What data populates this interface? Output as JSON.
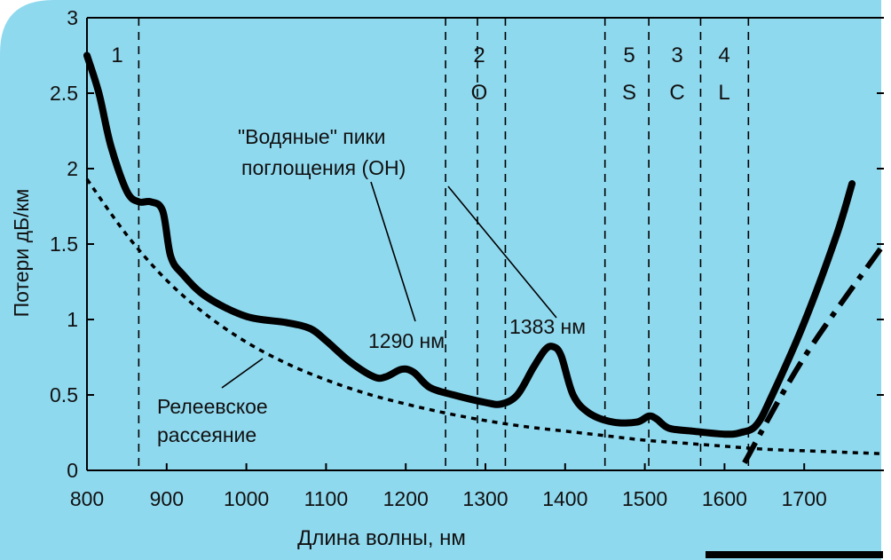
{
  "chart_data": {
    "type": "line",
    "title": "",
    "xlabel": "Длина волны, нм",
    "ylabel": "Потери дБ/км",
    "xlim": [
      800,
      1800
    ],
    "ylim": [
      0,
      3
    ],
    "x_ticks": [
      "800",
      "900",
      "1000",
      "1100",
      "1200",
      "1300",
      "1400",
      "1500",
      "1600",
      "1700"
    ],
    "y_ticks": [
      "0",
      "0.5",
      "1",
      "1.5",
      "2",
      "2.5",
      "3"
    ],
    "grid": false,
    "background": "#8fd9ef",
    "line_color": "#000000",
    "series": [
      {
        "name": "",
        "style": "solid",
        "x": [
          800,
          815,
          830,
          850,
          865,
          880,
          895,
          905,
          920,
          950,
          1000,
          1050,
          1080,
          1100,
          1130,
          1160,
          1175,
          1195,
          1210,
          1230,
          1260,
          1300,
          1320,
          1340,
          1360,
          1375,
          1385,
          1395,
          1410,
          1430,
          1460,
          1490,
          1505,
          1515,
          1530,
          1560,
          1600,
          1620,
          1640,
          1660,
          1700,
          1740,
          1760
        ],
        "y": [
          2.75,
          2.5,
          2.15,
          1.85,
          1.78,
          1.78,
          1.72,
          1.42,
          1.3,
          1.15,
          1.02,
          0.98,
          0.94,
          0.86,
          0.72,
          0.62,
          0.62,
          0.67,
          0.65,
          0.55,
          0.5,
          0.45,
          0.44,
          0.5,
          0.68,
          0.8,
          0.82,
          0.76,
          0.5,
          0.38,
          0.32,
          0.32,
          0.36,
          0.34,
          0.28,
          0.26,
          0.24,
          0.25,
          0.3,
          0.5,
          0.98,
          1.55,
          1.9
        ]
      },
      {
        "name": "Релеевское рассеяние",
        "style": "dashed",
        "x": [
          800,
          850,
          900,
          950,
          1000,
          1050,
          1100,
          1150,
          1200,
          1250,
          1300,
          1350,
          1400,
          1450,
          1500,
          1550,
          1600,
          1650,
          1700,
          1750,
          1800
        ],
        "y": [
          1.93,
          1.56,
          1.26,
          1.03,
          0.85,
          0.71,
          0.6,
          0.51,
          0.44,
          0.38,
          0.33,
          0.29,
          0.26,
          0.23,
          0.2,
          0.18,
          0.16,
          0.14,
          0.13,
          0.12,
          0.11
        ]
      },
      {
        "name": "",
        "style": "dashdot",
        "x": [
          1625,
          1700,
          1800
        ],
        "y": [
          0.05,
          0.75,
          1.5
        ]
      }
    ],
    "bands": [
      {
        "x": 865,
        "top": "1"
      },
      {
        "x": 1250
      },
      {
        "x": 1290,
        "top": "2",
        "bottom": "O"
      },
      {
        "x": 1325
      },
      {
        "x": 1450,
        "top": "5",
        "bottom": "S"
      },
      {
        "x": 1505,
        "top": "3",
        "bottom": "C"
      },
      {
        "x": 1570,
        "top": "4",
        "bottom": "L"
      },
      {
        "x": 1630
      }
    ],
    "annotations": {
      "water_peaks_line1": "\"Водяные\" пики",
      "water_peaks_line2": "поглощения (OH)",
      "peak1_label": "1290 нм",
      "peak2_label": "1383 нм",
      "rayleigh_line1": "Релеевское",
      "rayleigh_line2": "рассеяние"
    }
  }
}
